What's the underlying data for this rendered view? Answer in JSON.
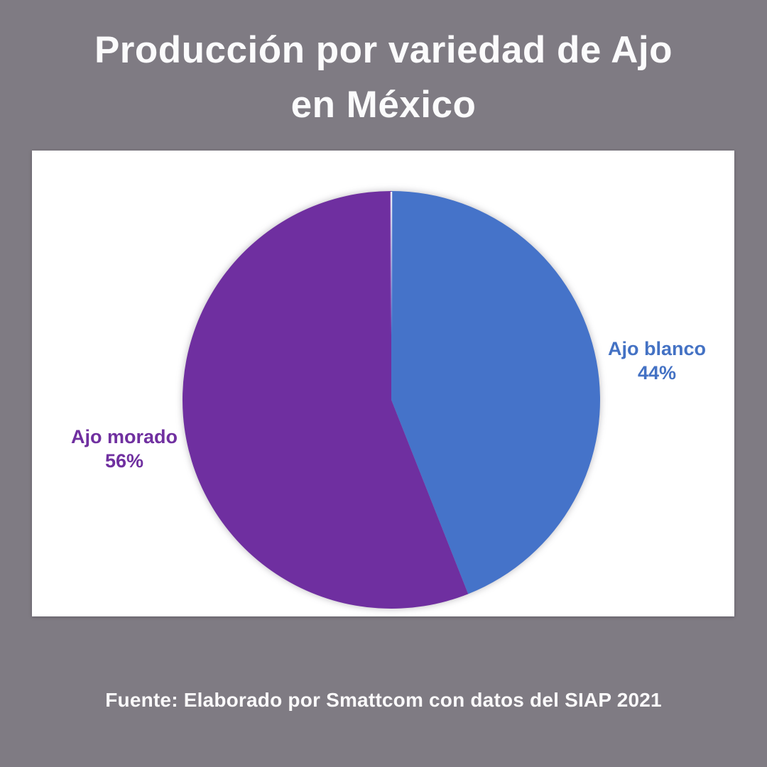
{
  "header": {
    "title_line1": "Producción por variedad de Ajo",
    "title_line2": "en México"
  },
  "footer": {
    "source": "Fuente: Elaborado por Smattcom con datos del SIAP 2021"
  },
  "colors": {
    "background": "#7F7B83",
    "card": "#FFFFFF",
    "title_text": "#FBFBFC",
    "footer_text": "#FAF9FA"
  },
  "chart_data": {
    "type": "pie",
    "title": "Producción por variedad de Ajo en México",
    "categories": [
      "Ajo blanco",
      "Ajo morado"
    ],
    "values": [
      44,
      56
    ],
    "unit": "%",
    "start_angle_deg": 0,
    "direction": "clockwise",
    "legend_position": "outside-labels",
    "slices": [
      {
        "label": "Ajo blanco",
        "value": 44,
        "pct_display": "44%",
        "color": "#4573C9",
        "text_color": "#4472C4"
      },
      {
        "label": "Ajo morado",
        "value": 56,
        "pct_display": "56%",
        "color": "#6F2FA0",
        "text_color": "#7030A0"
      }
    ],
    "source": "Fuente: Elaborado por Smattcom con datos del SIAP 2021"
  }
}
